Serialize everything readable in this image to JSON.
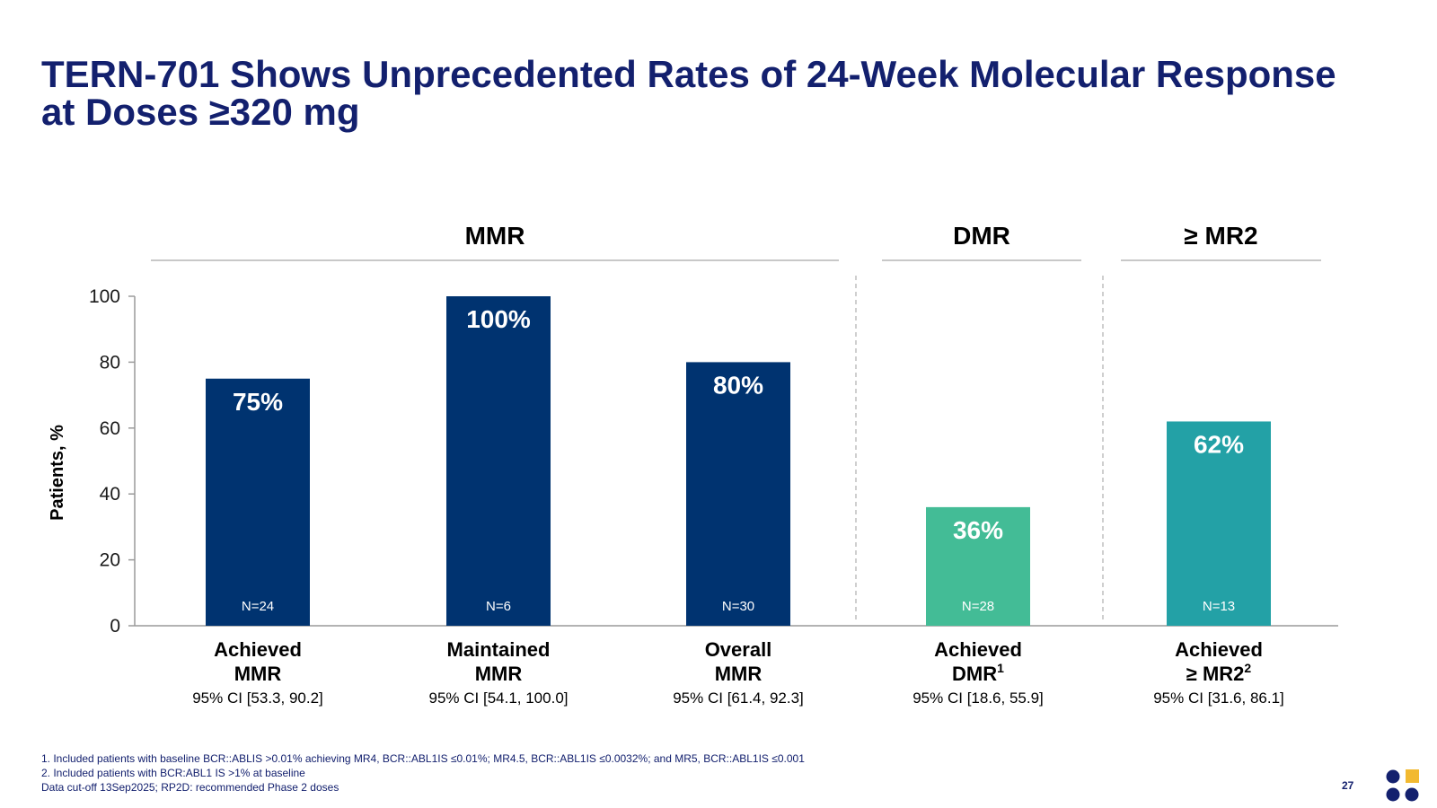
{
  "title": {
    "line1": "TERN-701 Shows Unprecedented Rates of 24-Week Molecular Response",
    "line2": "at Doses ≥320 mg"
  },
  "colors": {
    "title": "#13206e",
    "mmr_bars": "#003370",
    "dmr_bar": "#43bc96",
    "mr2_bar": "#23a1a6"
  },
  "chart_data": {
    "type": "bar",
    "ylabel": "Patients, %",
    "ylim": [
      0,
      100
    ],
    "yticks": [
      0,
      20,
      40,
      60,
      80,
      100
    ],
    "grid": false,
    "groups": [
      {
        "label": "MMR",
        "bars": [
          0,
          1,
          2
        ]
      },
      {
        "label": "DMR",
        "bars": [
          3
        ]
      },
      {
        "label": "≥ MR2",
        "bars": [
          4
        ]
      }
    ],
    "bars": [
      {
        "category_line1": "Achieved",
        "category_line2": "MMR",
        "sup": "",
        "ci": "95% CI [53.3, 90.2]",
        "value": 75,
        "value_label": "75%",
        "n": "N=24",
        "color": "#003370"
      },
      {
        "category_line1": "Maintained",
        "category_line2": "MMR",
        "sup": "",
        "ci": "95% CI [54.1, 100.0]",
        "value": 100,
        "value_label": "100%",
        "n": "N=6",
        "color": "#003370"
      },
      {
        "category_line1": "Overall",
        "category_line2": "MMR",
        "sup": "",
        "ci": "95% CI [61.4, 92.3]",
        "value": 80,
        "value_label": "80%",
        "n": "N=30",
        "color": "#003370"
      },
      {
        "category_line1": "Achieved",
        "category_line2": "DMR",
        "sup": "1",
        "ci": "95% CI [18.6, 55.9]",
        "value": 36,
        "value_label": "36%",
        "n": "N=28",
        "color": "#43bc96"
      },
      {
        "category_line1": "Achieved",
        "category_line2": "≥ MR2",
        "sup": "2",
        "ci": "95% CI [31.6, 86.1]",
        "value": 62,
        "value_label": "62%",
        "n": "N=13",
        "color": "#23a1a6"
      }
    ]
  },
  "footnotes": {
    "line1": "1. Included patients with baseline BCR::ABLIS >0.01% achieving MR4, BCR::ABL1IS ≤0.01%; MR4.5, BCR::ABL1IS ≤0.0032%; and MR5, BCR::ABL1IS ≤0.001",
    "line2": "2. Included patients with BCR:ABL1 IS >1% at baseline",
    "line3": "Data cut-off 13Sep2025; RP2D: recommended Phase 2 doses"
  },
  "page_number": "27"
}
